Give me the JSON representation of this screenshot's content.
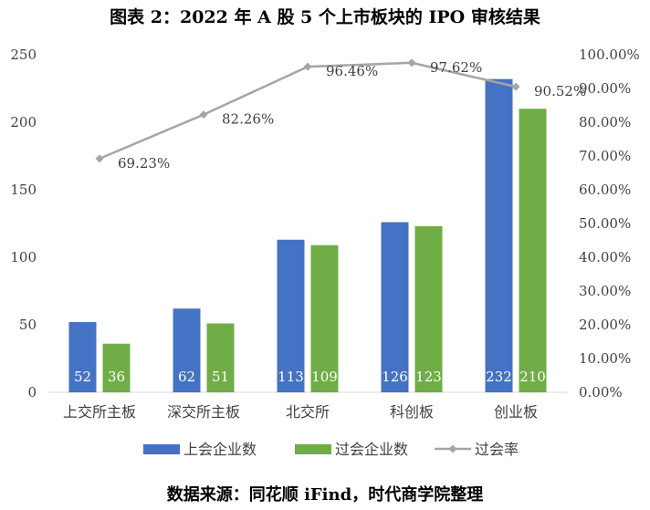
{
  "title": "图表 2：2022 年 A 股 5 个上市板块的 IPO 审核结果",
  "source": "数据来源：同花顺 iFind，时代商学院整理",
  "chart_data": {
    "type": "bar",
    "categories": [
      "上交所主板",
      "深交所主板",
      "北交所",
      "科创板",
      "创业板"
    ],
    "series": [
      {
        "name": "上会企业数",
        "type": "bar",
        "axis": "left",
        "color": "#4472C4",
        "values": [
          52,
          62,
          113,
          126,
          232
        ],
        "labels": [
          "52",
          "62",
          "113",
          "126",
          "232"
        ]
      },
      {
        "name": "过会企业数",
        "type": "bar",
        "axis": "left",
        "color": "#70AD47",
        "values": [
          36,
          51,
          109,
          123,
          210
        ],
        "labels": [
          "36",
          "51",
          "109",
          "123",
          "210"
        ]
      },
      {
        "name": "过会率",
        "type": "line",
        "axis": "right",
        "color": "#A5A5A5",
        "values": [
          0.6923,
          0.8226,
          0.9646,
          0.9762,
          0.9052
        ],
        "labels": [
          "69.23%",
          "82.26%",
          "96.46%",
          "97.62%",
          "90.52%"
        ]
      }
    ],
    "y_left": {
      "min": 0,
      "max": 250,
      "step": 50,
      "ticks": [
        "0",
        "50",
        "100",
        "150",
        "200",
        "250"
      ]
    },
    "y_right": {
      "min": 0,
      "max": 1,
      "step": 0.1,
      "ticks": [
        "0.00%",
        "10.00%",
        "20.00%",
        "30.00%",
        "40.00%",
        "50.00%",
        "60.00%",
        "70.00%",
        "80.00%",
        "90.00%",
        "100.00%"
      ]
    },
    "xlabel": "",
    "ylabel": "",
    "grid": false,
    "legend": "bottom"
  }
}
